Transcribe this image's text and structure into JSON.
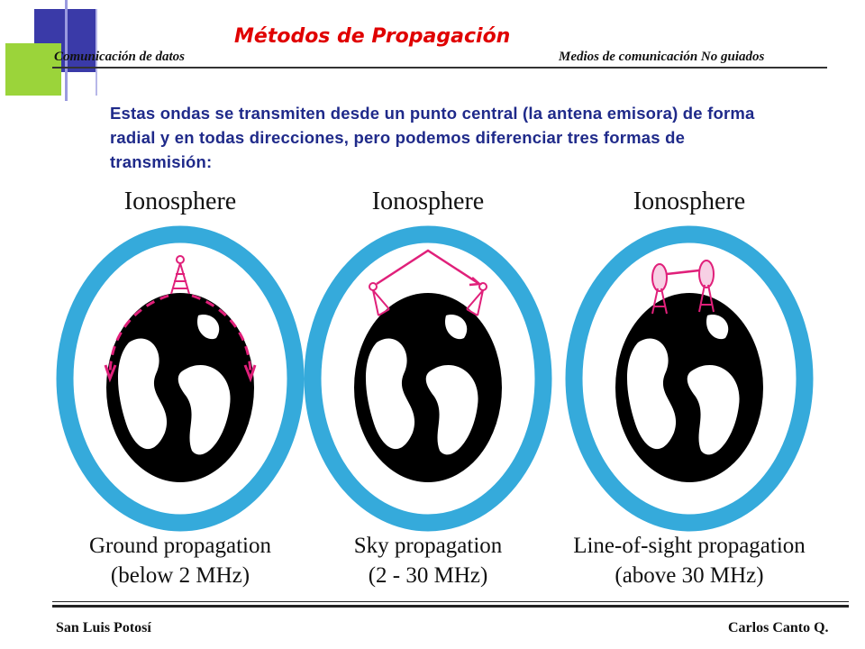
{
  "slide": {
    "title": "Métodos de Propagación",
    "header_left": "Comunicación de datos",
    "header_right": "Medios de comunicación  No guiados",
    "intro": "Estas ondas se transmiten desde un punto central (la antena emisora) de forma radial y en todas direcciones, pero podemos diferenciar tres formas de transmisión:",
    "footer_left": "San Luis Potosí",
    "footer_right": "Carlos Canto Q."
  },
  "colors": {
    "title": "#e00000",
    "ionosphere": "#35aadb",
    "wave": "#e0207a",
    "earth": "#000000",
    "intro_text": "#1f2a8a"
  },
  "figure": {
    "panels": [
      {
        "id": "ground",
        "layer_label": "Ionosphere",
        "caption_line1": "Ground propagation",
        "caption_line2": "(below 2 MHz)"
      },
      {
        "id": "sky",
        "layer_label": "Ionosphere",
        "caption_line1": "Sky propagation",
        "caption_line2": "(2 - 30 MHz)"
      },
      {
        "id": "los",
        "layer_label": "Ionosphere",
        "caption_line1": "Line-of-sight propagation",
        "caption_line2": "(above 30 MHz)"
      }
    ]
  }
}
